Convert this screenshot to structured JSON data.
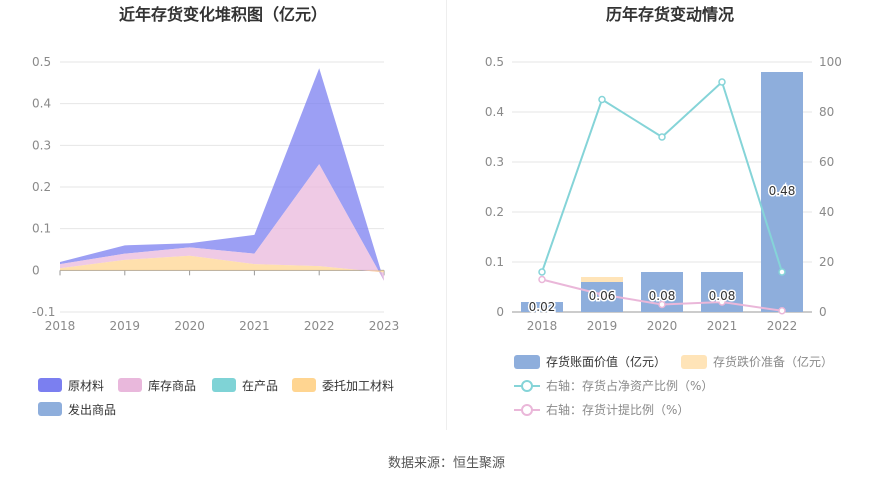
{
  "chart_data": [
    {
      "type": "area",
      "stacked": true,
      "title": "近年存货变化堆积图（亿元）",
      "x": [
        "2018",
        "2019",
        "2020",
        "2021",
        "2022",
        "2023"
      ],
      "yticks": [
        "-0.1",
        "0",
        "0.1",
        "0.2",
        "0.3",
        "0.4",
        "0.5"
      ],
      "ylim": [
        -0.1,
        0.5
      ],
      "grid": true,
      "legend_position": "bottom",
      "series": [
        {
          "name": "原材料",
          "color": "#7b7ff0",
          "values": [
            0.005,
            0.02,
            0.01,
            0.045,
            0.23,
            0.0
          ]
        },
        {
          "name": "库存商品",
          "color": "#e9b8dc",
          "values": [
            0.01,
            0.015,
            0.02,
            0.025,
            0.245,
            -0.02
          ]
        },
        {
          "name": "在产品",
          "color": "#7fd3d6",
          "values": [
            0.0,
            0.0,
            0.0,
            0.0,
            0.0,
            0.0
          ]
        },
        {
          "name": "委托加工材料",
          "color": "#ffd591",
          "values": [
            0.005,
            0.025,
            0.035,
            0.015,
            0.01,
            -0.005
          ]
        },
        {
          "name": "发出商品",
          "color": "#8eaedc",
          "values": [
            0.0,
            0.0,
            0.0,
            0.0,
            0.0,
            0.0
          ]
        }
      ]
    },
    {
      "type": "bar",
      "title": "历年存货变动情况",
      "categories": [
        "2018",
        "2019",
        "2020",
        "2021",
        "2022"
      ],
      "y_left_ticks": [
        "0",
        "0.1",
        "0.2",
        "0.3",
        "0.4",
        "0.5"
      ],
      "y_right_ticks": [
        "0",
        "20",
        "40",
        "60",
        "80",
        "100"
      ],
      "ylim_left": [
        0,
        0.5
      ],
      "ylim_right": [
        0,
        100
      ],
      "grid": true,
      "legend_position": "bottom",
      "bars": [
        {
          "name": "存货账面价值（亿元）",
          "color": "#8eaedc",
          "values": [
            0.02,
            0.06,
            0.08,
            0.08,
            0.48
          ],
          "labels": [
            "0.02",
            "0.06",
            "0.08",
            "0.08",
            "0.48"
          ]
        },
        {
          "name": "存货跌价准备（亿元）",
          "color": "#ffe4b8",
          "values": [
            0.0,
            0.01,
            0.0,
            0.0,
            0.0
          ]
        }
      ],
      "lines": [
        {
          "name": "右轴：存货占净资产比例（%）",
          "color": "#85d4d8",
          "values": [
            16,
            85,
            70,
            92,
            16
          ]
        },
        {
          "name": "右轴：存货计提比例（%）",
          "color": "#eab7d9",
          "values": [
            13,
            7,
            3,
            4,
            0.5
          ]
        }
      ]
    }
  ],
  "footer": {
    "source": "数据来源：恒生聚源"
  }
}
